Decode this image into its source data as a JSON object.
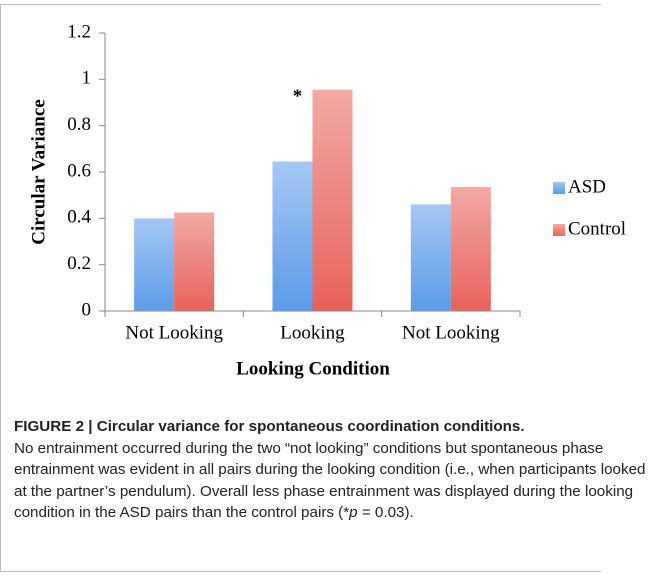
{
  "chart_data": {
    "type": "bar",
    "categories": [
      "Not Looking",
      "Looking",
      "Not Looking"
    ],
    "series": [
      {
        "name": "ASD",
        "color": "#5b9be8",
        "values": [
          0.4,
          0.645,
          0.46
        ]
      },
      {
        "name": "Control",
        "color": "#e8625a",
        "values": [
          0.425,
          0.955,
          0.535
        ]
      }
    ],
    "ylim": [
      0,
      1.2
    ],
    "yticks": [
      0,
      0.2,
      0.4,
      0.6,
      0.8,
      1,
      1.2
    ],
    "y_label": "Circular Variance",
    "x_label": "Looking Condition",
    "annotation": "*",
    "legend": "right"
  },
  "caption": {
    "title": "FIGURE 2 | Circular variance for spontaneous coordination conditions.",
    "text": "No entrainment occurred during the two “not looking” conditions but spontaneous phase entrainment was evident in all pairs during the looking condition (i.e., when participants looked at the partner’s pendulum). Overall less phase entrainment was displayed during the looking condition in the ASD pairs than the control pairs (*",
    "italic": "p",
    "end": " = 0.03)."
  }
}
